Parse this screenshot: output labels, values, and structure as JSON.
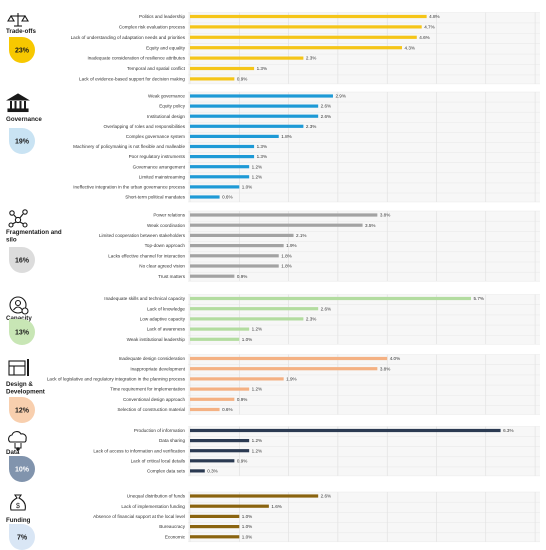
{
  "chart_data": {
    "type": "bar",
    "orientation": "horizontal",
    "xlim": [
      0,
      7
    ],
    "grid": true,
    "value_suffix": "%",
    "groups": [
      {
        "name": "Trade-offs",
        "share": "23%",
        "color": "#f5c518",
        "badge": "#f7c800",
        "icon": "scales-icon",
        "items": [
          {
            "label": "Politics and leadership",
            "value": 4.8
          },
          {
            "label": "Complex risk evaluation process",
            "value": 4.7
          },
          {
            "label": "Lack of understanding of adaptation needs and priorities",
            "value": 4.6
          },
          {
            "label": "Equity and equality",
            "value": 4.3
          },
          {
            "label": "Inadequate consideration of resilience attributes",
            "value": 2.3
          },
          {
            "label": "Temporal and spatial conflict",
            "value": 1.3
          },
          {
            "label": "Lack of evidence-based support for decision making",
            "value": 0.9
          }
        ]
      },
      {
        "name": "Governance",
        "share": "19%",
        "color": "#1e9ad6",
        "badge": "#c9e3f3",
        "icon": "government-building-icon",
        "items": [
          {
            "label": "Weak governance",
            "value": 2.9
          },
          {
            "label": "Equity policy",
            "value": 2.6
          },
          {
            "label": "Institutional design",
            "value": 2.6
          },
          {
            "label": "Overlapping of roles and responsibilities",
            "value": 2.3
          },
          {
            "label": "Complex governance system",
            "value": 1.8
          },
          {
            "label": "Machinery of policymaking is not flexible and malleable",
            "value": 1.3
          },
          {
            "label": "Poor regulatory instruments",
            "value": 1.3
          },
          {
            "label": "Governance arrangement",
            "value": 1.2
          },
          {
            "label": "Limited mainstreaming",
            "value": 1.2
          },
          {
            "label": "Ineffective integration in the urban governance process",
            "value": 1.0
          },
          {
            "label": "Short-term political mandates",
            "value": 0.6
          }
        ]
      },
      {
        "name": "Fragmentation and silo",
        "share": "16%",
        "color": "#a3a3a3",
        "badge": "#dcdcdc",
        "icon": "network-icon",
        "items": [
          {
            "label": "Power relations",
            "value": 3.8
          },
          {
            "label": "Weak coordination",
            "value": 3.5
          },
          {
            "label": "Limited cooperation between stakeholders",
            "value": 2.1
          },
          {
            "label": "Top-down approach",
            "value": 1.9
          },
          {
            "label": "Lacks effective channel for interaction",
            "value": 1.8
          },
          {
            "label": "No clear agreed vision",
            "value": 1.8
          },
          {
            "label": "Trust matters",
            "value": 0.9
          }
        ]
      },
      {
        "name": "Capacity",
        "share": "13%",
        "color": "#b3dca0",
        "badge": "#c8e6b5",
        "icon": "capacity-icon",
        "items": [
          {
            "label": "Inadequate skills and technical capacity",
            "value": 5.7
          },
          {
            "label": "Lack of knowledge",
            "value": 2.6
          },
          {
            "label": "Low adaptive capacity",
            "value": 2.3
          },
          {
            "label": "Lack of awareness",
            "value": 1.2
          },
          {
            "label": "Weak institutional leadership",
            "value": 1.0
          }
        ]
      },
      {
        "name": "Design & Development",
        "share": "12%",
        "color": "#f4b183",
        "badge": "#f8cfae",
        "icon": "design-icon",
        "items": [
          {
            "label": "Inadequate design consideration",
            "value": 4.0
          },
          {
            "label": "Inappropriate development",
            "value": 3.8
          },
          {
            "label": "Lack of legislative and regulatory integration in the planning process",
            "value": 1.9
          },
          {
            "label": "Time requirement for implementation",
            "value": 1.2
          },
          {
            "label": "Conventional design approach",
            "value": 0.9
          },
          {
            "label": "Selection of construction material",
            "value": 0.6
          }
        ]
      },
      {
        "name": "Data",
        "share": "10%",
        "color": "#2b3a52",
        "badge": "#8194ad",
        "icon": "data-cloud-icon",
        "items": [
          {
            "label": "Production of information",
            "value": 6.3
          },
          {
            "label": "Data sharing",
            "value": 1.2
          },
          {
            "label": "Lack of access to information and verification",
            "value": 1.2
          },
          {
            "label": "Lack of critical local details",
            "value": 0.9
          },
          {
            "label": "Complex data sets",
            "value": 0.3
          }
        ]
      },
      {
        "name": "Funding",
        "share": "7%",
        "color": "#8a6410",
        "badge": "#d9e6f5",
        "icon": "money-bag-icon",
        "items": [
          {
            "label": "Unequal distribution of funds",
            "value": 2.6
          },
          {
            "label": "Lack of implementation funding",
            "value": 1.6
          },
          {
            "label": "Absence of financial support at the local level",
            "value": 1.0
          },
          {
            "label": "Bureaucracy",
            "value": 1.0
          },
          {
            "label": "Economic",
            "value": 1.0
          }
        ]
      }
    ]
  }
}
